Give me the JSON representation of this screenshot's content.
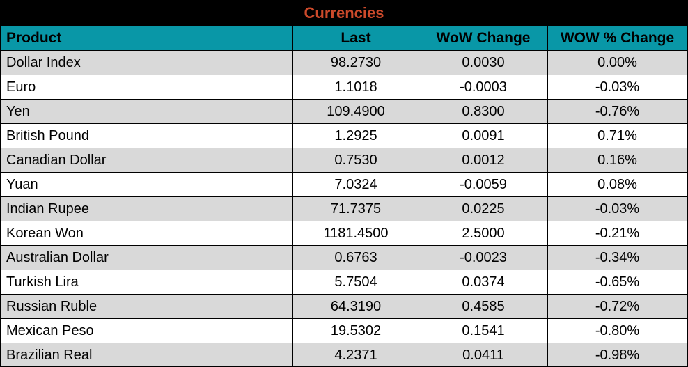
{
  "title": "Currencies",
  "colors": {
    "title_bg": "#000000",
    "title_text": "#cc4a2b",
    "header_bg": "#0997a7",
    "row_alt_bg": "#d9d9d9",
    "row_bg": "#ffffff",
    "border": "#000000",
    "text": "#000000"
  },
  "chart_data": {
    "type": "table",
    "title": "Currencies",
    "columns": [
      "Product",
      "Last",
      "WoW Change",
      "WOW % Change"
    ],
    "rows": [
      {
        "product": "Dollar Index",
        "last": "98.2730",
        "wow_change": "0.0030",
        "wow_pct_change": "0.00%"
      },
      {
        "product": "Euro",
        "last": "1.1018",
        "wow_change": "-0.0003",
        "wow_pct_change": "-0.03%"
      },
      {
        "product": "Yen",
        "last": "109.4900",
        "wow_change": "0.8300",
        "wow_pct_change": "-0.76%"
      },
      {
        "product": "British Pound",
        "last": "1.2925",
        "wow_change": "0.0091",
        "wow_pct_change": "0.71%"
      },
      {
        "product": "Canadian Dollar",
        "last": "0.7530",
        "wow_change": "0.0012",
        "wow_pct_change": "0.16%"
      },
      {
        "product": "Yuan",
        "last": "7.0324",
        "wow_change": "-0.0059",
        "wow_pct_change": "0.08%"
      },
      {
        "product": "Indian Rupee",
        "last": "71.7375",
        "wow_change": "0.0225",
        "wow_pct_change": "-0.03%"
      },
      {
        "product": "Korean Won",
        "last": "1181.4500",
        "wow_change": "2.5000",
        "wow_pct_change": "-0.21%"
      },
      {
        "product": "Australian Dollar",
        "last": "0.6763",
        "wow_change": "-0.0023",
        "wow_pct_change": "-0.34%"
      },
      {
        "product": "Turkish Lira",
        "last": "5.7504",
        "wow_change": "0.0374",
        "wow_pct_change": "-0.65%"
      },
      {
        "product": "Russian Ruble",
        "last": "64.3190",
        "wow_change": "0.4585",
        "wow_pct_change": "-0.72%"
      },
      {
        "product": "Mexican Peso",
        "last": "19.5302",
        "wow_change": "0.1541",
        "wow_pct_change": "-0.80%"
      },
      {
        "product": "Brazilian Real",
        "last": "4.2371",
        "wow_change": "0.0411",
        "wow_pct_change": "-0.98%"
      }
    ]
  }
}
